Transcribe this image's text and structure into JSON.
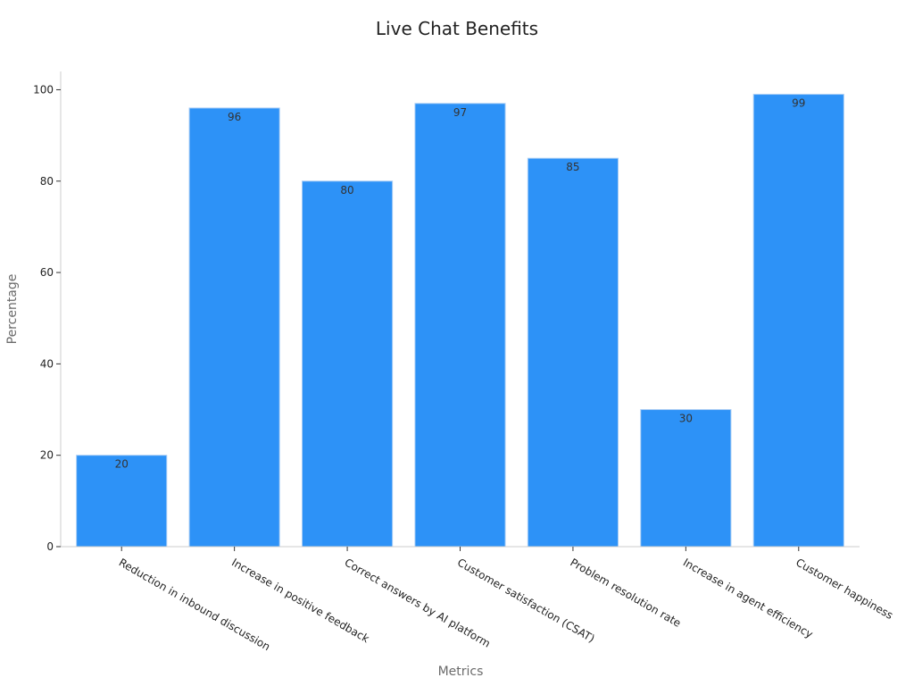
{
  "chart_data": {
    "type": "bar",
    "title": "Live Chat Benefits",
    "xlabel": "Metrics",
    "ylabel": "Percentage",
    "categories": [
      "Reduction in inbound discussion",
      "Increase in positive feedback",
      "Correct answers by AI platform",
      "Customer satisfaction (CSAT)",
      "Problem resolution rate",
      "Increase in agent efficiency",
      "Customer happiness"
    ],
    "values": [
      20,
      96,
      80,
      97,
      85,
      30,
      99
    ],
    "data_labels": [
      "20",
      "96",
      "80",
      "97",
      "85",
      "30",
      "99"
    ],
    "ylim": [
      0,
      104
    ],
    "yticks": [
      0,
      20,
      40,
      60,
      80,
      100
    ],
    "grid": false,
    "legend": "none",
    "bar_color": "#2d92f7",
    "bar_edge_color": "#a8cdf5"
  }
}
